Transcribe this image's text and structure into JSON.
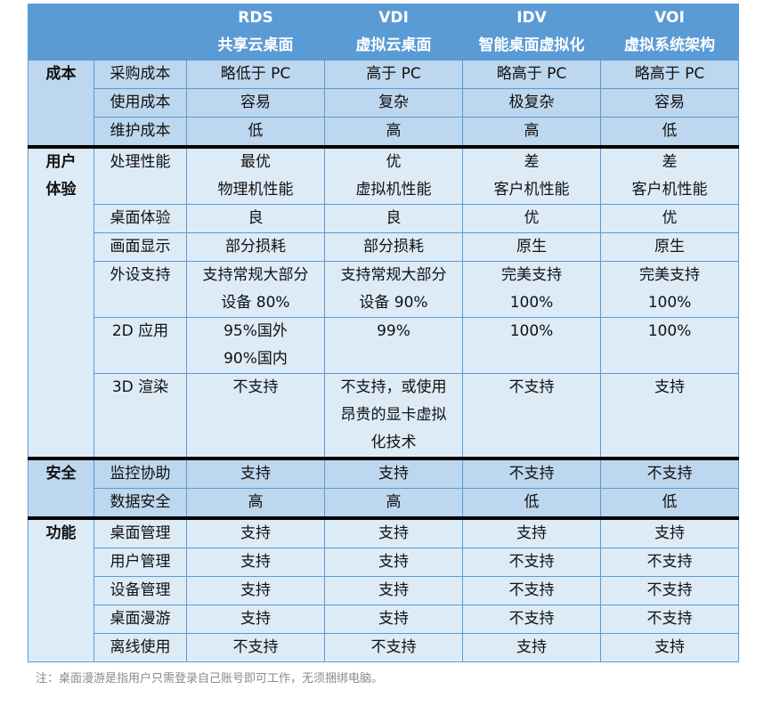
{
  "header": {
    "columns": [
      {
        "code": "",
        "name": ""
      },
      {
        "code": "",
        "name": ""
      },
      {
        "code": "RDS",
        "name": "共享云桌面"
      },
      {
        "code": "VDI",
        "name": "虚拟云桌面"
      },
      {
        "code": "IDV",
        "name": "智能桌面虚拟化"
      },
      {
        "code": "VOI",
        "name": "虚拟系统架构"
      }
    ]
  },
  "groups": [
    {
      "category": "成本",
      "rows": [
        {
          "item": "采购成本",
          "values": [
            "略低于 PC",
            "高于 PC",
            "略高于 PC",
            "略高于 PC"
          ]
        },
        {
          "item": "使用成本",
          "values": [
            "容易",
            "复杂",
            "极复杂",
            "容易"
          ]
        },
        {
          "item": "维护成本",
          "values": [
            "低",
            "高",
            "高",
            "低"
          ]
        }
      ]
    },
    {
      "category": "用户\n体验",
      "category_lines": [
        "用户",
        "体验"
      ],
      "rows": [
        {
          "item": "处理性能",
          "values": [
            "最优\n物理机性能",
            "优\n虚拟机性能",
            "差\n客户机性能",
            "差\n客户机性能"
          ]
        },
        {
          "item": "桌面体验",
          "values": [
            "良",
            "良",
            "优",
            "优"
          ]
        },
        {
          "item": "画面显示",
          "values": [
            "部分损耗",
            "部分损耗",
            "原生",
            "原生"
          ]
        },
        {
          "item": "外设支持",
          "values": [
            "支持常规大部分\n设备 80%",
            "支持常规大部分\n设备 90%",
            "完美支持\n100%",
            "完美支持\n100%"
          ]
        },
        {
          "item": "2D 应用",
          "values": [
            "95%国外\n90%国内",
            "99%",
            "100%",
            "100%"
          ]
        },
        {
          "item": "3D 渲染",
          "values": [
            "不支持",
            "不支持，或使用\n昂贵的显卡虚拟\n化技术",
            "不支持",
            "支持"
          ]
        }
      ]
    },
    {
      "category": "安全",
      "rows": [
        {
          "item": "监控协助",
          "values": [
            "支持",
            "支持",
            "不支持",
            "不支持"
          ]
        },
        {
          "item": "数据安全",
          "values": [
            "高",
            "高",
            "低",
            "低"
          ]
        }
      ]
    },
    {
      "category": "功能",
      "rows": [
        {
          "item": "桌面管理",
          "values": [
            "支持",
            "支持",
            "支持",
            "支持"
          ]
        },
        {
          "item": "用户管理",
          "values": [
            "支持",
            "支持",
            "不支持",
            "不支持"
          ]
        },
        {
          "item": "设备管理",
          "values": [
            "支持",
            "支持",
            "不支持",
            "不支持"
          ]
        },
        {
          "item": "桌面漫游",
          "values": [
            "支持",
            "支持",
            "不支持",
            "不支持"
          ]
        },
        {
          "item": "离线使用",
          "values": [
            "不支持",
            "不支持",
            "支持",
            "支持"
          ]
        }
      ]
    }
  ],
  "note": "注：桌面漫游是指用户只需登录自己账号即可工作，无须捆绑电脑。",
  "colors": {
    "header_bg": "#5b9bd5",
    "dark_row_bg": "#bdd7ee",
    "light_row_bg": "#ddebf7",
    "border": "#5b9bd5",
    "separator": "#000000",
    "note_text": "#8a8a8a"
  }
}
